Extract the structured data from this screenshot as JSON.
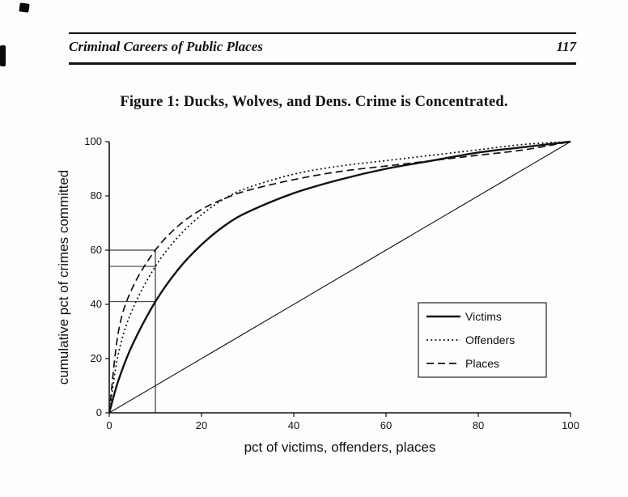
{
  "page": {
    "running_head": "Criminal Careers of Public Places",
    "page_number": "117"
  },
  "figure": {
    "title": "Figure 1: Ducks, Wolves, and Dens. Crime is Concentrated."
  },
  "chart_data": {
    "type": "line",
    "title": "Figure 1: Ducks, Wolves, and Dens. Crime is Concentrated.",
    "xlabel": "pct of victims, offenders, places",
    "ylabel": "cumulative pct of crimes committed",
    "xlim": [
      0,
      100
    ],
    "ylim": [
      0,
      100
    ],
    "x_ticks": [
      0,
      20,
      40,
      60,
      80,
      100
    ],
    "y_ticks": [
      0,
      20,
      40,
      60,
      80,
      100
    ],
    "grid": false,
    "x": [
      0,
      2,
      5,
      10,
      15,
      20,
      25,
      30,
      40,
      50,
      60,
      70,
      80,
      90,
      100
    ],
    "series": [
      {
        "name": "Victims",
        "style": "solid",
        "values": [
          0,
          12,
          25,
          41,
          53,
          62,
          69,
          74,
          81,
          86,
          90,
          93,
          96,
          98,
          100
        ]
      },
      {
        "name": "Offenders",
        "style": "dotted",
        "values": [
          0,
          22,
          38,
          54,
          65,
          73,
          79,
          83,
          88,
          91,
          93,
          95,
          97,
          99,
          100
        ]
      },
      {
        "name": "Places",
        "style": "dashed",
        "values": [
          0,
          30,
          46,
          60,
          69,
          75,
          79,
          82,
          86,
          89,
          91,
          93,
          95,
          97,
          100
        ]
      }
    ],
    "diagonal": {
      "from": [
        0,
        0
      ],
      "to": [
        100,
        100
      ]
    },
    "reference_lines": {
      "vertical_x": 10,
      "horizontal_y": [
        41,
        54,
        60
      ]
    },
    "legend": {
      "position": "inside-right",
      "entries": [
        "Victims",
        "Offenders",
        "Places"
      ]
    },
    "ink_color": "#111111",
    "background_color": "#fdfdfb"
  }
}
